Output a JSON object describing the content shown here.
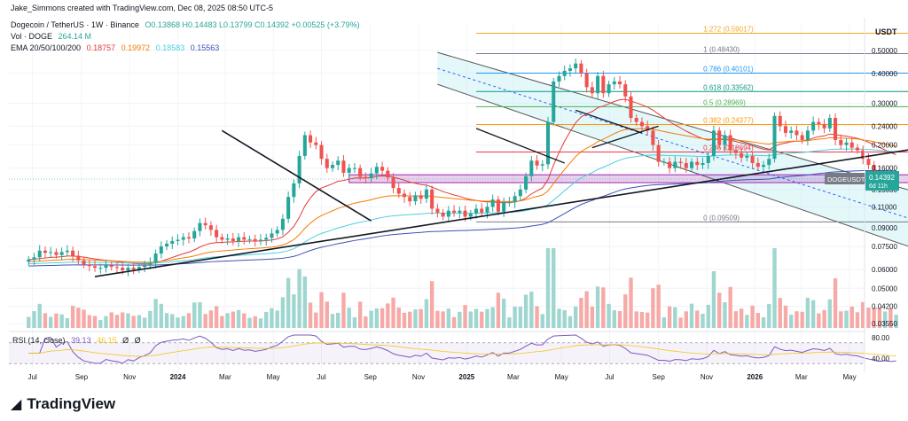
{
  "attribution": "Jake_Simmons created with TradingView.com, Dec 08, 2025 08:50 UTC-5",
  "legend": {
    "pair": "Dogecoin / TetherUS · 1W · Binance",
    "ohlc": "O0.13868  H0.14483  L0.13799  C0.14392  +0.00525 (+3.79%)",
    "vol_label": "Vol · DOGE",
    "vol_value": "264.14 M",
    "ema_label": "EMA 20/50/100/200",
    "ema_values": [
      "0.18757",
      "0.19972",
      "0.18583",
      "0.15563"
    ],
    "ema_colors": [
      "#e53935",
      "#f57c00",
      "#4dd0e1",
      "#3f51b5"
    ]
  },
  "rsi_legend": {
    "label": "RSI (14, close)",
    "value": "39.13",
    "extra": [
      "46.15",
      "Ø",
      "Ø"
    ]
  },
  "brand": {
    "name": "TradingView",
    "logo_glyph": "◢"
  },
  "price_axis_unit": "USDT",
  "price_badge": {
    "symbol": "DOGEUSDT",
    "price": "0.14392",
    "countdown": "6d 11h",
    "color": "#787b86"
  },
  "fib_levels": [
    {
      "label": "1.272 (0.59017)",
      "price": 0.59017,
      "color": "#f5a623"
    },
    {
      "label": "1 (0.48430)",
      "price": 0.4843,
      "color": "#787b86"
    },
    {
      "label": "0.786 (0.40101)",
      "price": 0.40101,
      "color": "#2196f3"
    },
    {
      "label": "0.618 (0.33562)",
      "price": 0.33562,
      "color": "#089981"
    },
    {
      "label": "0.5 (0.28969)",
      "price": 0.28969,
      "color": "#4caf50"
    },
    {
      "label": "0.382 (0.24377)",
      "price": 0.24377,
      "color": "#ff9800"
    },
    {
      "label": "0.236 (0.18694)",
      "price": 0.18694,
      "color": "#f23645"
    },
    {
      "label": "0 (0.09509)",
      "price": 0.09509,
      "color": "#787b86"
    }
  ],
  "colors": {
    "up": "#26a69a",
    "down": "#ef5350",
    "zone": "#9c27b0",
    "channel": "#b2ebf2",
    "rsi": "#7e57c2"
  },
  "chart_data": {
    "type": "candlestick",
    "price_scale": "log",
    "ylim": [
      0.0335,
      0.64
    ],
    "y_ticks": [
      "0.50000",
      "0.40000",
      "0.30000",
      "0.24000",
      "0.20000",
      "0.16000",
      "0.13000",
      "0.11000",
      "0.09000",
      "0.07500",
      "0.06000",
      "0.05000",
      "0.04200",
      "0.03550"
    ],
    "x_ticks": [
      "Jul",
      "Sep",
      "Nov",
      "2024",
      "Mar",
      "May",
      "Jul",
      "Sep",
      "Nov",
      "2025",
      "Mar",
      "May",
      "Jul",
      "Sep",
      "Nov",
      "2026",
      "Mar",
      "May"
    ],
    "x_start": "2023-06-26",
    "interval": "1W",
    "closes": [
      0.066,
      0.0675,
      0.072,
      0.0705,
      0.071,
      0.069,
      0.071,
      0.072,
      0.0685,
      0.0655,
      0.063,
      0.062,
      0.061,
      0.061,
      0.0625,
      0.0615,
      0.061,
      0.0595,
      0.061,
      0.06,
      0.0615,
      0.0625,
      0.064,
      0.07,
      0.075,
      0.077,
      0.079,
      0.08,
      0.082,
      0.081,
      0.087,
      0.094,
      0.092,
      0.088,
      0.082,
      0.08,
      0.081,
      0.079,
      0.082,
      0.08,
      0.0805,
      0.079,
      0.08,
      0.0815,
      0.085,
      0.088,
      0.098,
      0.121,
      0.138,
      0.18,
      0.22,
      0.205,
      0.2,
      0.175,
      0.16,
      0.165,
      0.172,
      0.153,
      0.16,
      0.16,
      0.147,
      0.145,
      0.152,
      0.162,
      0.156,
      0.146,
      0.132,
      0.125,
      0.121,
      0.116,
      0.123,
      0.119,
      0.13,
      0.108,
      0.104,
      0.1,
      0.106,
      0.104,
      0.106,
      0.1,
      0.103,
      0.108,
      0.104,
      0.11,
      0.118,
      0.105,
      0.115,
      0.115,
      0.122,
      0.13,
      0.148,
      0.172,
      0.164,
      0.166,
      0.25,
      0.37,
      0.39,
      0.41,
      0.42,
      0.44,
      0.4,
      0.35,
      0.33,
      0.39,
      0.33,
      0.36,
      0.37,
      0.36,
      0.32,
      0.26,
      0.25,
      0.24,
      0.23,
      0.2,
      0.17,
      0.17,
      0.16,
      0.17,
      0.168,
      0.16,
      0.17,
      0.165,
      0.168,
      0.18,
      0.23,
      0.2,
      0.22,
      0.19,
      0.185,
      0.177,
      0.18,
      0.168,
      0.162,
      0.165,
      0.175,
      0.265,
      0.24,
      0.225,
      0.23,
      0.22,
      0.21,
      0.23,
      0.25,
      0.245,
      0.235,
      0.26,
      0.21,
      0.2,
      0.205,
      0.195,
      0.19,
      0.175,
      0.165,
      0.155,
      0.145,
      0.148,
      0.142,
      0.14392
    ],
    "ema": [
      {
        "name": "EMA 20",
        "last": 0.18757,
        "period": 20
      },
      {
        "name": "EMA 50",
        "last": 0.19972,
        "period": 50
      },
      {
        "name": "EMA 100",
        "last": 0.18583,
        "period": 100
      },
      {
        "name": "EMA 200",
        "last": 0.15563,
        "period": 200
      }
    ],
    "support_zone": [
      0.139,
      0.15
    ],
    "rsi_levels": [
      70,
      30
    ],
    "rsi_ticks": [
      "80.00",
      "40.00"
    ]
  }
}
